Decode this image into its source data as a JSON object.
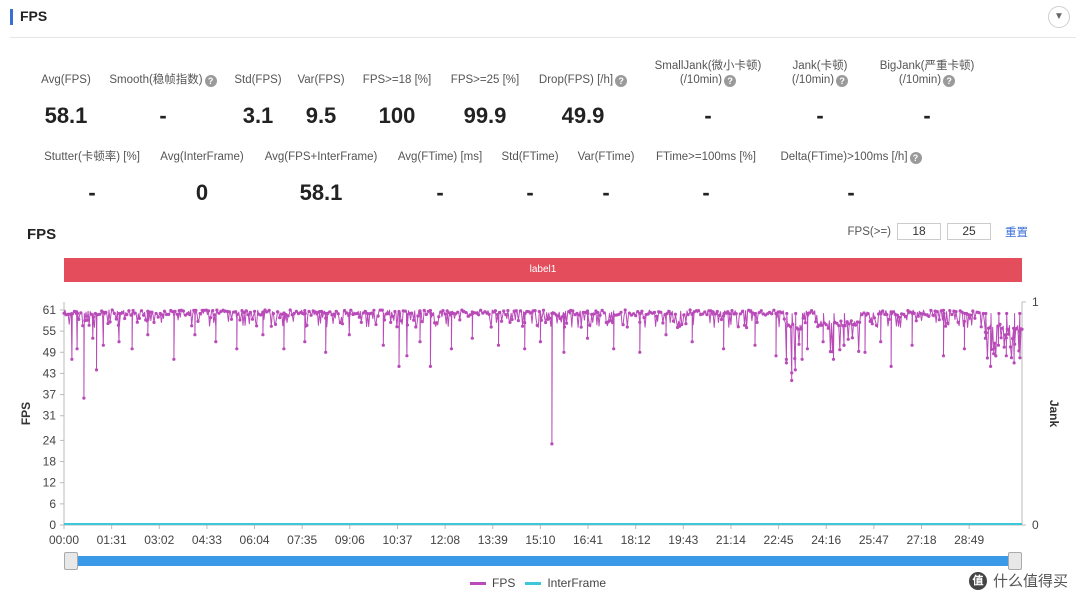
{
  "panel": {
    "title": "FPS",
    "collapse_icon": "chevron-down-icon"
  },
  "metrics_row1": [
    {
      "label": "Avg(FPS)",
      "help": false,
      "value": "58.1"
    },
    {
      "label": "Smooth(稳帧指数)",
      "help": true,
      "value": "-"
    },
    {
      "label": "Std(FPS)",
      "help": false,
      "value": "3.1"
    },
    {
      "label": "Var(FPS)",
      "help": false,
      "value": "9.5"
    },
    {
      "label": "FPS>=18 [%]",
      "help": false,
      "value": "100"
    },
    {
      "label": "FPS>=25 [%]",
      "help": false,
      "value": "99.9"
    },
    {
      "label": "Drop(FPS) [/h]",
      "help": true,
      "value": "49.9"
    },
    {
      "label": "SmallJank(微小卡顿)",
      "label2": "(/10min)",
      "help": true,
      "value": "-"
    },
    {
      "label": "Jank(卡顿)",
      "label2": "(/10min)",
      "help": true,
      "value": "-"
    },
    {
      "label": "BigJank(严重卡顿)",
      "label2": "(/10min)",
      "help": true,
      "value": "-"
    }
  ],
  "metrics_row2": [
    {
      "label": "Stutter(卡顿率) [%]",
      "help": false,
      "value": "-"
    },
    {
      "label": "Avg(InterFrame)",
      "help": false,
      "value": "0"
    },
    {
      "label": "Avg(FPS+InterFrame)",
      "help": false,
      "value": "58.1"
    },
    {
      "label": "Avg(FTime) [ms]",
      "help": false,
      "value": "-"
    },
    {
      "label": "Std(FTime)",
      "help": false,
      "value": "-"
    },
    {
      "label": "Var(FTime)",
      "help": false,
      "value": "-"
    },
    {
      "label": "FTime>=100ms [%]",
      "help": false,
      "value": "-"
    },
    {
      "label": "Delta(FTime)>100ms [/h]",
      "help": true,
      "value": "-"
    }
  ],
  "chart_header": {
    "title": "FPS",
    "threshold_label": "FPS(>=)",
    "threshold_1": "18",
    "threshold_2": "25",
    "reset_label": "重置"
  },
  "label_band": "label1",
  "legend": [
    {
      "name": "FPS",
      "color": "#b94bb9"
    },
    {
      "name": "InterFrame",
      "color": "#3cc8d8"
    }
  ],
  "watermark": {
    "logo": "值",
    "text": "什么值得买"
  },
  "colors": {
    "accent": "#3a6fd8",
    "label_band": "#e44d5b",
    "fps_series": "#b94bb9",
    "interframe_series": "#3cc8d8",
    "slider": "#3b9ae8"
  },
  "chart_data": {
    "type": "line",
    "title": "FPS",
    "xlabel": "",
    "ylabel": "FPS",
    "y2label": "Jank",
    "ylim": [
      0,
      61
    ],
    "y_ticks": [
      0,
      6,
      12,
      18,
      24,
      31,
      37,
      43,
      49,
      55,
      61
    ],
    "y2lim": [
      0,
      1
    ],
    "y2_ticks": [
      "0",
      "1"
    ],
    "x_ticks": [
      "00:00",
      "01:31",
      "03:02",
      "04:33",
      "06:04",
      "07:35",
      "09:06",
      "10:37",
      "12:08",
      "13:39",
      "15:10",
      "16:41",
      "18:12",
      "19:43",
      "21:14",
      "22:45",
      "24:16",
      "25:47",
      "27:18",
      "28:49"
    ],
    "x_range_seconds": [
      0,
      1830
    ],
    "grid": false,
    "legend_position": "bottom",
    "series": [
      {
        "name": "FPS",
        "baseline_range": [
          56,
          61
        ],
        "dips": [
          {
            "t": 15,
            "v": 47
          },
          {
            "t": 25,
            "v": 50
          },
          {
            "t": 38,
            "v": 36
          },
          {
            "t": 55,
            "v": 53
          },
          {
            "t": 62,
            "v": 44
          },
          {
            "t": 75,
            "v": 51
          },
          {
            "t": 105,
            "v": 52
          },
          {
            "t": 130,
            "v": 50
          },
          {
            "t": 160,
            "v": 54
          },
          {
            "t": 210,
            "v": 47
          },
          {
            "t": 250,
            "v": 54
          },
          {
            "t": 290,
            "v": 52
          },
          {
            "t": 330,
            "v": 50
          },
          {
            "t": 380,
            "v": 54
          },
          {
            "t": 420,
            "v": 50
          },
          {
            "t": 460,
            "v": 52
          },
          {
            "t": 500,
            "v": 49
          },
          {
            "t": 545,
            "v": 54
          },
          {
            "t": 610,
            "v": 51
          },
          {
            "t": 640,
            "v": 45
          },
          {
            "t": 655,
            "v": 48
          },
          {
            "t": 680,
            "v": 52
          },
          {
            "t": 700,
            "v": 45
          },
          {
            "t": 740,
            "v": 50
          },
          {
            "t": 780,
            "v": 53
          },
          {
            "t": 830,
            "v": 51
          },
          {
            "t": 880,
            "v": 50
          },
          {
            "t": 910,
            "v": 52
          },
          {
            "t": 932,
            "v": 23
          },
          {
            "t": 955,
            "v": 49
          },
          {
            "t": 1000,
            "v": 53
          },
          {
            "t": 1050,
            "v": 50
          },
          {
            "t": 1100,
            "v": 49
          },
          {
            "t": 1150,
            "v": 54
          },
          {
            "t": 1200,
            "v": 52
          },
          {
            "t": 1260,
            "v": 50
          },
          {
            "t": 1320,
            "v": 51
          },
          {
            "t": 1360,
            "v": 48
          },
          {
            "t": 1380,
            "v": 46
          },
          {
            "t": 1390,
            "v": 41
          },
          {
            "t": 1397,
            "v": 44
          },
          {
            "t": 1410,
            "v": 47
          },
          {
            "t": 1420,
            "v": 50
          },
          {
            "t": 1450,
            "v": 52
          },
          {
            "t": 1470,
            "v": 47
          },
          {
            "t": 1490,
            "v": 51
          },
          {
            "t": 1530,
            "v": 49
          },
          {
            "t": 1560,
            "v": 52
          },
          {
            "t": 1580,
            "v": 45
          },
          {
            "t": 1620,
            "v": 51
          },
          {
            "t": 1680,
            "v": 48
          },
          {
            "t": 1720,
            "v": 50
          },
          {
            "t": 1760,
            "v": 53
          },
          {
            "t": 1770,
            "v": 45
          },
          {
            "t": 1785,
            "v": 51
          },
          {
            "t": 1800,
            "v": 48
          },
          {
            "t": 1815,
            "v": 46
          },
          {
            "t": 1825,
            "v": 55
          }
        ],
        "noisy_segments": [
          {
            "from": 1380,
            "to": 1410,
            "range": [
              43,
              57
            ]
          },
          {
            "from": 1440,
            "to": 1520,
            "range": [
              49,
              58
            ]
          },
          {
            "from": 1760,
            "to": 1830,
            "range": [
              47,
              57
            ]
          }
        ]
      },
      {
        "name": "InterFrame",
        "value": 0
      }
    ]
  }
}
